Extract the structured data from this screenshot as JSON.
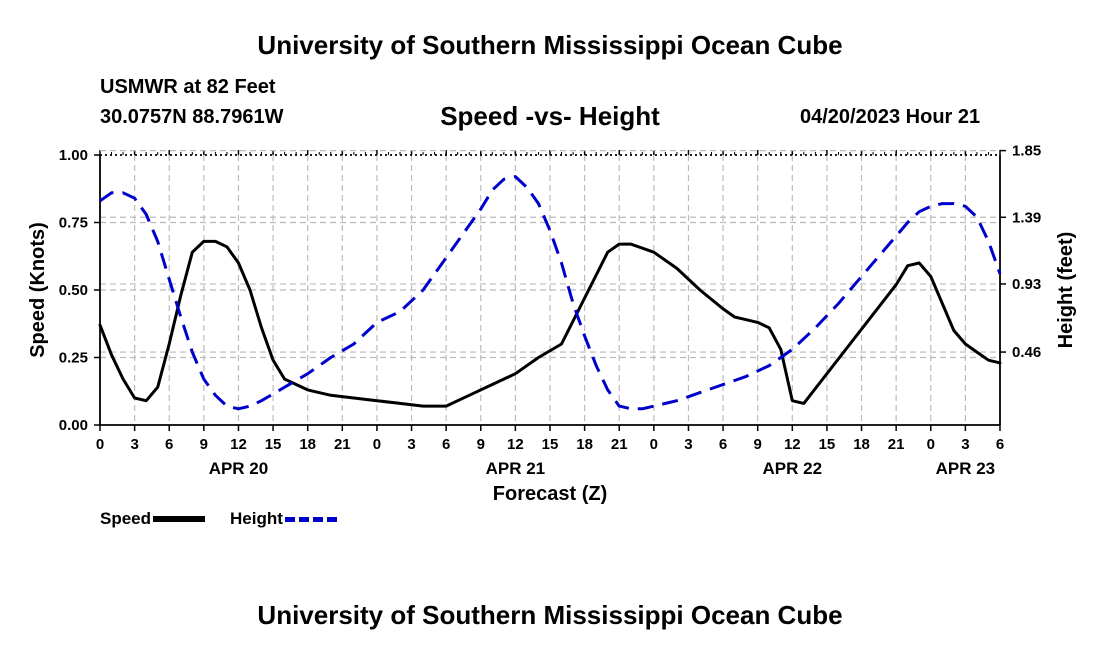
{
  "header": {
    "title": "University of Southern Mississippi Ocean Cube",
    "station": "USMWR at 82 Feet",
    "coords": "30.0757N  88.7961W",
    "subtitle": "Speed -vs- Height",
    "datetime": "04/20/2023 Hour 21",
    "footer_title": "University of Southern Mississippi Ocean Cube"
  },
  "legend": {
    "speed_label": "Speed",
    "height_label": "Height"
  },
  "chart_data": {
    "type": "line",
    "title": "Speed -vs- Height",
    "xlabel": "Forecast (Z)",
    "ylabel": "Speed (Knots)",
    "y2label": "Height (feet)",
    "x_range_hours": [
      0,
      78
    ],
    "x_tick_labels": [
      "0",
      "3",
      "6",
      "9",
      "12",
      "15",
      "18",
      "21",
      "0",
      "3",
      "6",
      "9",
      "12",
      "15",
      "18",
      "21",
      "0",
      "3",
      "6",
      "9",
      "12",
      "15",
      "18",
      "21",
      "0",
      "3",
      "6"
    ],
    "date_labels": [
      {
        "hour": 12,
        "label": "APR 20"
      },
      {
        "hour": 36,
        "label": "APR 21"
      },
      {
        "hour": 60,
        "label": "APR 22"
      },
      {
        "hour": 75,
        "label": "APR 23"
      }
    ],
    "ylim": [
      0,
      1
    ],
    "y_ticks": [
      0,
      0.25,
      0.5,
      0.75,
      1.0
    ],
    "y_tick_labels": [
      "0.00",
      "0.25",
      "0.50",
      "0.75",
      "1.00"
    ],
    "y2_ticks": [
      0.46,
      0.93,
      1.39,
      1.85
    ],
    "y2_tick_labels": [
      "0.46",
      "0.93",
      "1.39",
      "1.85"
    ],
    "y2_scale": {
      "a": 0.0232,
      "b": 0.5368
    },
    "series": [
      {
        "name": "Speed",
        "color": "#000000",
        "style": "solid",
        "axis": "left",
        "x": [
          0,
          1,
          2,
          3,
          4,
          5,
          6,
          7,
          8,
          9,
          10,
          11,
          12,
          13,
          14,
          15,
          16,
          17,
          18,
          20,
          22,
          24,
          26,
          28,
          30,
          31,
          32,
          34,
          36,
          38,
          40,
          42,
          44,
          45,
          46,
          48,
          50,
          52,
          54,
          55,
          56,
          57,
          58,
          59,
          60,
          61,
          63,
          65,
          67,
          69,
          70,
          71,
          72,
          73,
          74,
          75,
          76,
          77,
          78
        ],
        "values": [
          0.37,
          0.26,
          0.17,
          0.1,
          0.09,
          0.14,
          0.3,
          0.48,
          0.64,
          0.68,
          0.68,
          0.66,
          0.6,
          0.5,
          0.36,
          0.24,
          0.17,
          0.15,
          0.13,
          0.11,
          0.1,
          0.09,
          0.08,
          0.07,
          0.07,
          0.09,
          0.11,
          0.15,
          0.19,
          0.25,
          0.3,
          0.47,
          0.64,
          0.67,
          0.67,
          0.64,
          0.58,
          0.5,
          0.43,
          0.4,
          0.39,
          0.38,
          0.36,
          0.28,
          0.09,
          0.08,
          0.19,
          0.3,
          0.41,
          0.52,
          0.59,
          0.6,
          0.55,
          0.45,
          0.35,
          0.3,
          0.27,
          0.24,
          0.23
        ]
      },
      {
        "name": "Height",
        "color": "#0000cc",
        "style": "dashed",
        "axis": "right",
        "x": [
          0,
          1,
          2,
          3,
          4,
          5,
          6,
          7,
          8,
          9,
          10,
          11,
          12,
          13,
          14,
          16,
          18,
          20,
          22,
          24,
          25,
          26,
          28,
          30,
          32,
          33,
          34,
          35,
          36,
          37,
          38,
          39,
          40,
          41,
          42,
          43,
          44,
          45,
          46,
          47,
          48,
          50,
          52,
          54,
          56,
          58,
          60,
          62,
          64,
          66,
          68,
          70,
          71,
          72,
          73,
          74,
          75,
          76,
          77,
          78
        ],
        "values": [
          0.83,
          0.86,
          0.86,
          0.84,
          0.78,
          0.68,
          0.54,
          0.4,
          0.27,
          0.17,
          0.11,
          0.07,
          0.06,
          0.07,
          0.09,
          0.14,
          0.19,
          0.25,
          0.3,
          0.38,
          0.4,
          0.42,
          0.5,
          0.62,
          0.74,
          0.8,
          0.87,
          0.91,
          0.92,
          0.88,
          0.82,
          0.72,
          0.6,
          0.45,
          0.33,
          0.22,
          0.13,
          0.07,
          0.06,
          0.06,
          0.07,
          0.09,
          0.12,
          0.15,
          0.18,
          0.22,
          0.28,
          0.36,
          0.45,
          0.55,
          0.65,
          0.75,
          0.79,
          0.81,
          0.82,
          0.82,
          0.81,
          0.77,
          0.68,
          0.56
        ]
      }
    ]
  }
}
